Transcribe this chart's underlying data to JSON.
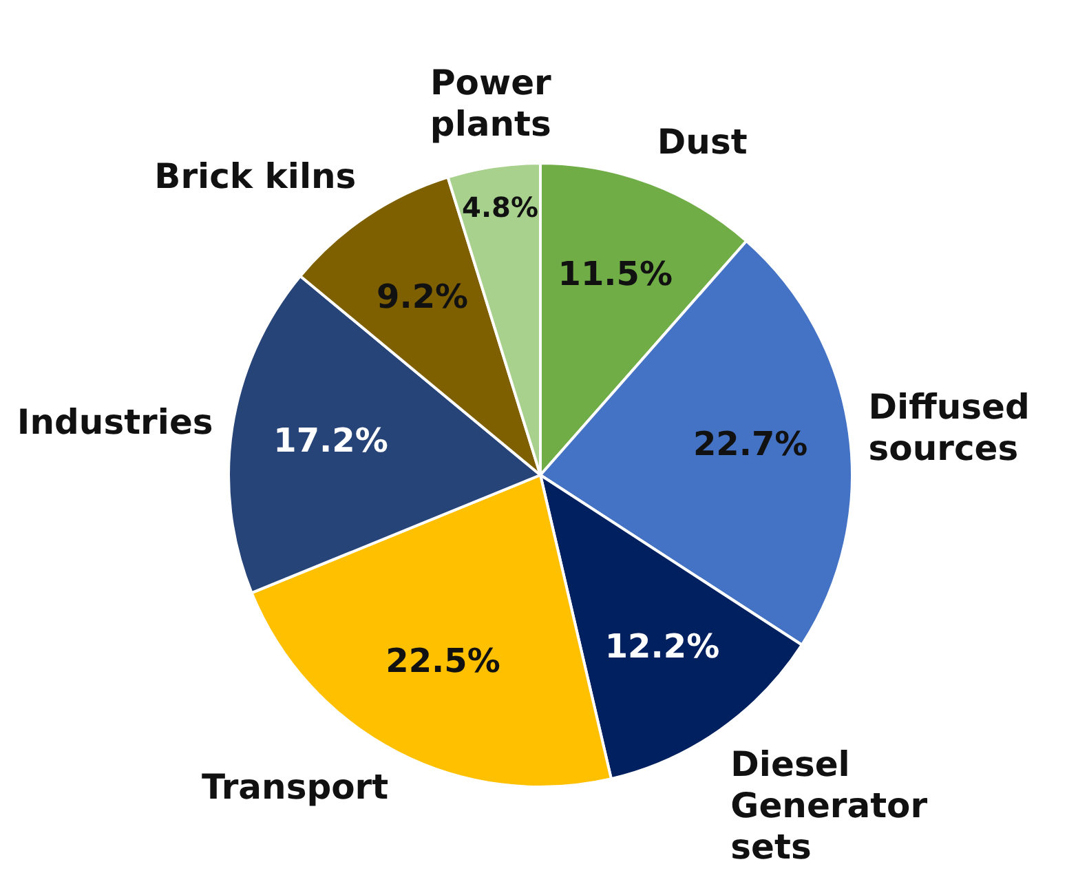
{
  "chart_data": {
    "type": "pie",
    "categories": [
      "Dust",
      "Diffused sources",
      "Diesel Generator sets",
      "Transport",
      "Industries",
      "Brick kilns",
      "Power plants"
    ],
    "values": [
      11.5,
      22.7,
      12.2,
      22.5,
      17.2,
      9.2,
      4.8
    ],
    "colors": [
      "#70ad47",
      "#4472c4",
      "#002060",
      "#ffc000",
      "#264478",
      "#7f6000",
      "#a9d18e"
    ],
    "value_labels": [
      "11.5%",
      "22.7%",
      "12.2%",
      "22.5%",
      "17.2%",
      "9.2%",
      "4.8%"
    ],
    "legend": false
  }
}
